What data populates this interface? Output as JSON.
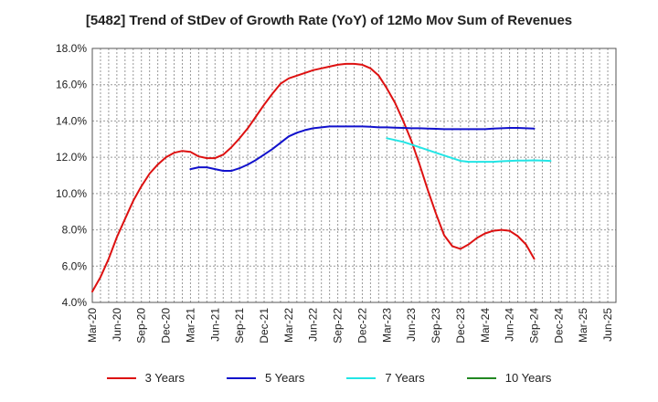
{
  "chart_data": {
    "type": "line",
    "title": "[5482]  Trend of StDev of Growth Rate (YoY) of 12Mo Mov Sum of Revenues",
    "xlabel": "",
    "ylabel": "",
    "ylim": [
      4.0,
      18.0
    ],
    "yticks": [
      "4.0%",
      "6.0%",
      "8.0%",
      "10.0%",
      "12.0%",
      "14.0%",
      "16.0%",
      "18.0%"
    ],
    "ytick_values": [
      4,
      6,
      8,
      10,
      12,
      14,
      16,
      18
    ],
    "xticks": [
      "Mar-20",
      "Jun-20",
      "Sep-20",
      "Dec-20",
      "Mar-21",
      "Jun-21",
      "Sep-21",
      "Dec-21",
      "Mar-22",
      "Jun-22",
      "Sep-22",
      "Dec-22",
      "Mar-23",
      "Jun-23",
      "Sep-23",
      "Dec-23",
      "Mar-24",
      "Jun-24",
      "Sep-24",
      "Dec-24",
      "Mar-25",
      "Jun-25"
    ],
    "x_count": 65,
    "grid": true,
    "legend_position": "bottom",
    "series": [
      {
        "name": "3 Years",
        "color": "#dd1111",
        "start": 0,
        "values": [
          4.6,
          5.4,
          6.4,
          7.6,
          8.6,
          9.6,
          10.4,
          11.1,
          11.6,
          12.0,
          12.25,
          12.35,
          12.3,
          12.05,
          11.95,
          11.95,
          12.15,
          12.55,
          13.05,
          13.6,
          14.25,
          14.9,
          15.5,
          16.05,
          16.35,
          16.5,
          16.65,
          16.8,
          16.9,
          17.0,
          17.1,
          17.15,
          17.15,
          17.1,
          16.9,
          16.5,
          15.8,
          15.0,
          14.0,
          12.9,
          11.6,
          10.2,
          8.9,
          7.7,
          7.1,
          6.95,
          7.2,
          7.55,
          7.8,
          7.95,
          8.0,
          7.95,
          7.65,
          7.2,
          6.4
        ]
      },
      {
        "name": "5 Years",
        "color": "#1111cc",
        "start": 12,
        "values": [
          11.35,
          11.45,
          11.45,
          11.35,
          11.25,
          11.25,
          11.4,
          11.6,
          11.85,
          12.15,
          12.45,
          12.8,
          13.15,
          13.35,
          13.5,
          13.6,
          13.65,
          13.7,
          13.7,
          13.7,
          13.7,
          13.7,
          13.68,
          13.65,
          13.65,
          13.63,
          13.62,
          13.6,
          13.6,
          13.58,
          13.57,
          13.55,
          13.55,
          13.55,
          13.55,
          13.55,
          13.55,
          13.58,
          13.6,
          13.62,
          13.62,
          13.6,
          13.58
        ]
      },
      {
        "name": "7 Years",
        "color": "#22e5e5",
        "start": 36,
        "values": [
          13.05,
          12.95,
          12.85,
          12.7,
          12.55,
          12.4,
          12.25,
          12.1,
          11.95,
          11.8,
          11.75,
          11.75,
          11.75,
          11.75,
          11.78,
          11.8,
          11.82,
          11.82,
          11.83,
          11.82,
          11.8
        ]
      },
      {
        "name": "10 Years",
        "color": "#228822",
        "start": 0,
        "values": []
      }
    ]
  }
}
